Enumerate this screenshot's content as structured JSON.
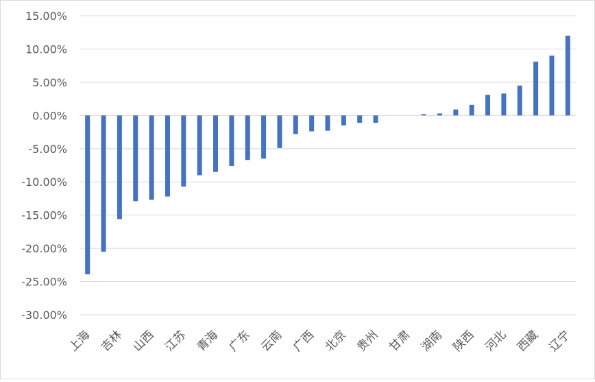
{
  "chart_data": {
    "type": "bar",
    "categories": [
      "上海",
      null,
      "吉林",
      null,
      "山西",
      null,
      "江苏",
      null,
      "青海",
      null,
      "广东",
      null,
      "云南",
      null,
      "广西",
      null,
      "北京",
      null,
      "贵州",
      null,
      "甘肃",
      null,
      "湖南",
      null,
      "陕西",
      null,
      "河北",
      null,
      "西藏",
      null,
      "辽宁"
    ],
    "values": [
      -23.9,
      -20.5,
      -15.6,
      -12.9,
      -12.7,
      -12.2,
      -10.7,
      -9.0,
      -8.5,
      -7.6,
      -6.7,
      -6.5,
      -4.9,
      -2.8,
      -2.4,
      -2.3,
      -1.5,
      -1.1,
      -1.1,
      0,
      0,
      0.2,
      0.3,
      0.9,
      1.6,
      3.1,
      3.3,
      4.5,
      8.1,
      9.0,
      12.0
    ],
    "color": "#4472c4",
    "ylim": [
      -30,
      15
    ],
    "yticks": [
      {
        "value": -30,
        "label": "-30.00%"
      },
      {
        "value": -25,
        "label": "-25.00%"
      },
      {
        "value": -20,
        "label": "-20.00%"
      },
      {
        "value": -15,
        "label": "-15.00%"
      },
      {
        "value": -10,
        "label": "-10.00%"
      },
      {
        "value": -5,
        "label": "-5.00%"
      },
      {
        "value": 0,
        "label": "0.00%"
      },
      {
        "value": 5,
        "label": "5.00%"
      },
      {
        "value": 10,
        "label": "10.00%"
      },
      {
        "value": 15,
        "label": "15.00%"
      }
    ],
    "grid": true
  }
}
